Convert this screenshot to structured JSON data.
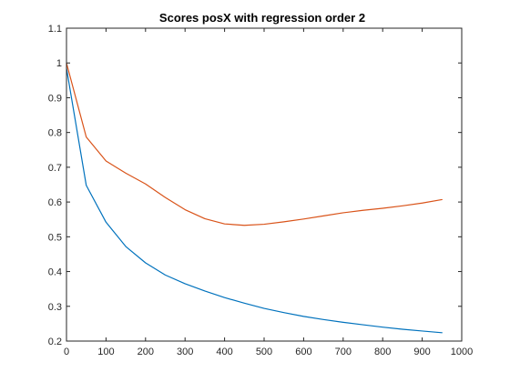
{
  "chart_data": {
    "type": "line",
    "title": "Scores posX with regression order 2",
    "xlabel": "",
    "ylabel": "",
    "xlim": [
      0,
      1000
    ],
    "ylim": [
      0.2,
      1.1
    ],
    "x_ticks": [
      0,
      100,
      200,
      300,
      400,
      500,
      600,
      700,
      800,
      900,
      1000
    ],
    "y_ticks": [
      0.2,
      0.3,
      0.4,
      0.5,
      0.6,
      0.7,
      0.8,
      0.9,
      1,
      1.1
    ],
    "x_tick_labels": [
      "0",
      "100",
      "200",
      "300",
      "400",
      "500",
      "600",
      "700",
      "800",
      "900",
      "1000"
    ],
    "y_tick_labels": [
      "0.2",
      "0.3",
      "0.4",
      "0.5",
      "0.6",
      "0.7",
      "0.8",
      "0.9",
      "1",
      "1.1"
    ],
    "grid": false,
    "legend": "none",
    "x": [
      0,
      50,
      100,
      150,
      200,
      250,
      300,
      350,
      400,
      450,
      500,
      550,
      600,
      650,
      700,
      750,
      800,
      850,
      900,
      950
    ],
    "series": [
      {
        "color": "#0072BD",
        "values": [
          0.985,
          0.648,
          0.542,
          0.472,
          0.425,
          0.39,
          0.365,
          0.344,
          0.325,
          0.309,
          0.294,
          0.282,
          0.271,
          0.262,
          0.254,
          0.247,
          0.24,
          0.234,
          0.229,
          0.224
        ]
      },
      {
        "color": "#D95319",
        "values": [
          1.0,
          0.787,
          0.718,
          0.683,
          0.652,
          0.613,
          0.578,
          0.552,
          0.537,
          0.533,
          0.536,
          0.543,
          0.551,
          0.56,
          0.569,
          0.576,
          0.582,
          0.589,
          0.597,
          0.607
        ]
      }
    ]
  }
}
